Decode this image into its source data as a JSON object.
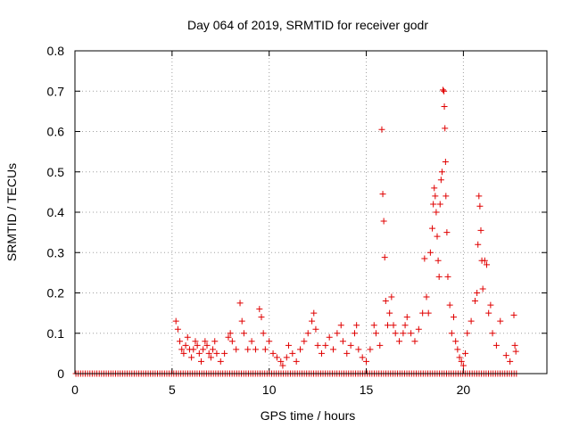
{
  "chart_data": {
    "type": "scatter",
    "title": "Day 064 of 2019, SRMTID for receiver godr",
    "xlabel": "GPS time / hours",
    "ylabel": "SRMTID / TECUs",
    "xlim": [
      0,
      24.3
    ],
    "ylim": [
      0,
      0.8
    ],
    "x_ticks": [
      0,
      5,
      10,
      15,
      20
    ],
    "x_tick_labels": [
      "0",
      "5",
      "10",
      "15",
      "20"
    ],
    "y_ticks": [
      0,
      0.1,
      0.2,
      0.3,
      0.4,
      0.5,
      0.6,
      0.7,
      0.8
    ],
    "y_tick_labels": [
      "0",
      "0.1",
      "0.2",
      "0.3",
      "0.4",
      "0.5",
      "0.6",
      "0.7",
      "0.8"
    ],
    "grid": true,
    "marker": "+",
    "color": "#e00000",
    "series": [
      {
        "name": "SRMTID",
        "zero_baseline_x_range": [
          0.05,
          22.8
        ],
        "points": [
          [
            5.2,
            0.13
          ],
          [
            5.3,
            0.11
          ],
          [
            5.4,
            0.08
          ],
          [
            5.5,
            0.06
          ],
          [
            5.6,
            0.05
          ],
          [
            5.7,
            0.07
          ],
          [
            5.8,
            0.09
          ],
          [
            5.9,
            0.06
          ],
          [
            6.0,
            0.04
          ],
          [
            6.1,
            0.06
          ],
          [
            6.2,
            0.08
          ],
          [
            6.3,
            0.07
          ],
          [
            6.4,
            0.05
          ],
          [
            6.5,
            0.03
          ],
          [
            6.6,
            0.06
          ],
          [
            6.7,
            0.08
          ],
          [
            6.8,
            0.07
          ],
          [
            6.9,
            0.05
          ],
          [
            7.0,
            0.04
          ],
          [
            7.1,
            0.06
          ],
          [
            7.2,
            0.08
          ],
          [
            7.3,
            0.05
          ],
          [
            7.5,
            0.03
          ],
          [
            7.7,
            0.05
          ],
          [
            7.9,
            0.09
          ],
          [
            8.0,
            0.1
          ],
          [
            8.1,
            0.08
          ],
          [
            8.3,
            0.06
          ],
          [
            8.5,
            0.175
          ],
          [
            8.6,
            0.13
          ],
          [
            8.7,
            0.1
          ],
          [
            8.9,
            0.06
          ],
          [
            9.1,
            0.08
          ],
          [
            9.3,
            0.06
          ],
          [
            9.5,
            0.16
          ],
          [
            9.6,
            0.14
          ],
          [
            9.7,
            0.1
          ],
          [
            9.8,
            0.06
          ],
          [
            10.0,
            0.08
          ],
          [
            10.2,
            0.05
          ],
          [
            10.4,
            0.04
          ],
          [
            10.6,
            0.03
          ],
          [
            10.7,
            0.02
          ],
          [
            10.9,
            0.04
          ],
          [
            11.0,
            0.07
          ],
          [
            11.2,
            0.05
          ],
          [
            11.4,
            0.03
          ],
          [
            11.6,
            0.06
          ],
          [
            11.8,
            0.08
          ],
          [
            12.0,
            0.1
          ],
          [
            12.2,
            0.13
          ],
          [
            12.3,
            0.15
          ],
          [
            12.4,
            0.11
          ],
          [
            12.5,
            0.07
          ],
          [
            12.7,
            0.05
          ],
          [
            12.9,
            0.07
          ],
          [
            13.1,
            0.09
          ],
          [
            13.3,
            0.06
          ],
          [
            13.5,
            0.1
          ],
          [
            13.7,
            0.12
          ],
          [
            13.8,
            0.08
          ],
          [
            14.0,
            0.05
          ],
          [
            14.2,
            0.07
          ],
          [
            14.4,
            0.1
          ],
          [
            14.5,
            0.12
          ],
          [
            14.6,
            0.06
          ],
          [
            14.8,
            0.04
          ],
          [
            15.0,
            0.03
          ],
          [
            15.2,
            0.06
          ],
          [
            15.4,
            0.12
          ],
          [
            15.5,
            0.1
          ],
          [
            15.7,
            0.07
          ],
          [
            15.8,
            0.605
          ],
          [
            15.85,
            0.445
          ],
          [
            15.9,
            0.378
          ],
          [
            15.95,
            0.288
          ],
          [
            16.0,
            0.18
          ],
          [
            16.1,
            0.12
          ],
          [
            16.2,
            0.15
          ],
          [
            16.3,
            0.19
          ],
          [
            16.4,
            0.12
          ],
          [
            16.5,
            0.1
          ],
          [
            16.7,
            0.08
          ],
          [
            16.9,
            0.1
          ],
          [
            17.0,
            0.12
          ],
          [
            17.1,
            0.14
          ],
          [
            17.3,
            0.1
          ],
          [
            17.5,
            0.08
          ],
          [
            17.7,
            0.11
          ],
          [
            17.9,
            0.15
          ],
          [
            18.0,
            0.285
          ],
          [
            18.1,
            0.19
          ],
          [
            18.2,
            0.15
          ],
          [
            18.3,
            0.3
          ],
          [
            18.4,
            0.36
          ],
          [
            18.45,
            0.42
          ],
          [
            18.5,
            0.46
          ],
          [
            18.55,
            0.44
          ],
          [
            18.6,
            0.4
          ],
          [
            18.65,
            0.34
          ],
          [
            18.7,
            0.28
          ],
          [
            18.75,
            0.24
          ],
          [
            18.8,
            0.42
          ],
          [
            18.85,
            0.48
          ],
          [
            18.9,
            0.5
          ],
          [
            18.95,
            0.703
          ],
          [
            19.0,
            0.7
          ],
          [
            19.02,
            0.662
          ],
          [
            19.05,
            0.608
          ],
          [
            19.08,
            0.525
          ],
          [
            19.1,
            0.44
          ],
          [
            19.15,
            0.35
          ],
          [
            19.2,
            0.24
          ],
          [
            19.3,
            0.17
          ],
          [
            19.4,
            0.1
          ],
          [
            19.5,
            0.14
          ],
          [
            19.6,
            0.08
          ],
          [
            19.7,
            0.06
          ],
          [
            19.8,
            0.04
          ],
          [
            19.9,
            0.03
          ],
          [
            20.0,
            0.02
          ],
          [
            20.1,
            0.05
          ],
          [
            20.2,
            0.1
          ],
          [
            20.4,
            0.13
          ],
          [
            20.6,
            0.18
          ],
          [
            20.7,
            0.2
          ],
          [
            20.75,
            0.32
          ],
          [
            20.8,
            0.44
          ],
          [
            20.85,
            0.415
          ],
          [
            20.9,
            0.355
          ],
          [
            20.95,
            0.28
          ],
          [
            21.0,
            0.21
          ],
          [
            21.1,
            0.28
          ],
          [
            21.2,
            0.27
          ],
          [
            21.3,
            0.15
          ],
          [
            21.4,
            0.17
          ],
          [
            21.5,
            0.1
          ],
          [
            21.7,
            0.07
          ],
          [
            21.9,
            0.13
          ],
          [
            22.2,
            0.045
          ],
          [
            22.4,
            0.03
          ],
          [
            22.6,
            0.145
          ],
          [
            22.65,
            0.07
          ],
          [
            22.7,
            0.055
          ]
        ]
      }
    ]
  }
}
